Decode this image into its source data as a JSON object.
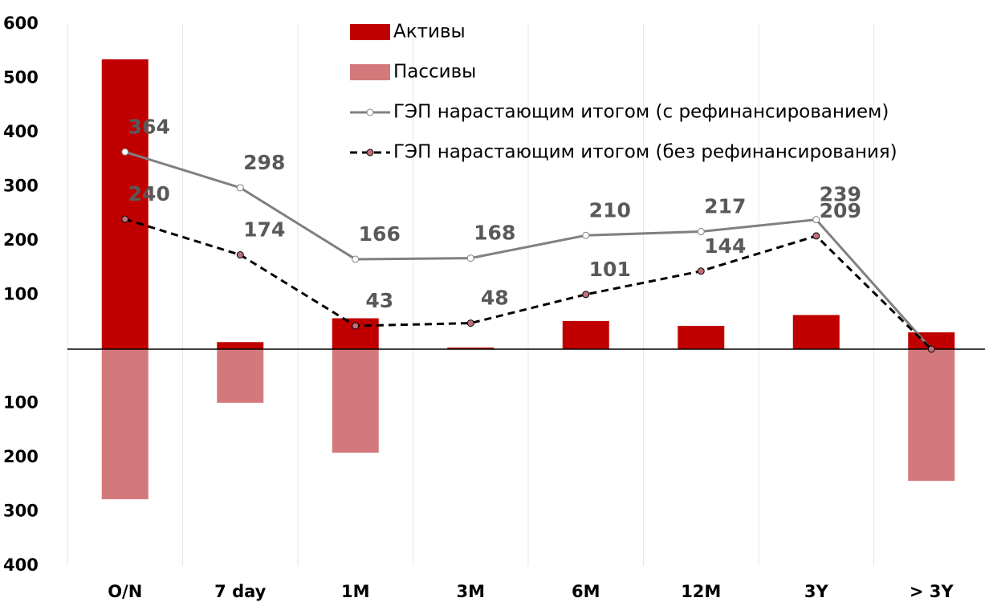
{
  "chart_data": {
    "type": "bar",
    "categories": [
      "O/N",
      "7 day",
      "1M",
      "3M",
      "6M",
      "12M",
      "3Y",
      "> 3Y"
    ],
    "series": [
      {
        "name": "Активы",
        "type": "bar",
        "color": "#c00000",
        "values": [
          535,
          13,
          57,
          3,
          52,
          43,
          63,
          31
        ]
      },
      {
        "name": "Пассивы",
        "type": "bar",
        "color": "#d4797b",
        "values": [
          -277,
          -99,
          -191,
          0,
          0,
          0,
          0,
          -243
        ]
      },
      {
        "name": "ГЭП нарастающим итогом (с рефинансированием)",
        "type": "line",
        "color": "#808080",
        "dash": false,
        "marker_color": "#ffffff",
        "values": [
          364,
          298,
          166,
          168,
          210,
          217,
          239,
          0
        ],
        "value_labels": [
          "364",
          "298",
          "166",
          "168",
          "210",
          "217",
          "239",
          null
        ]
      },
      {
        "name": "ГЭП нарастающим итогом (без рефинансирования)",
        "type": "line",
        "color": "#000000",
        "dash": true,
        "marker_color": "#c0707a",
        "values": [
          240,
          174,
          43,
          48,
          101,
          144,
          209,
          0
        ],
        "value_labels": [
          "240",
          "174",
          "43",
          "48",
          "101",
          "144",
          "209",
          null
        ]
      }
    ],
    "ylim": [
      -400,
      600
    ],
    "yticks": [
      {
        "value": -400,
        "label": "400"
      },
      {
        "value": -300,
        "label": "300"
      },
      {
        "value": -200,
        "label": "200"
      },
      {
        "value": -100,
        "label": "100"
      },
      100,
      200,
      300,
      400,
      500,
      600
    ],
    "grid": true
  }
}
